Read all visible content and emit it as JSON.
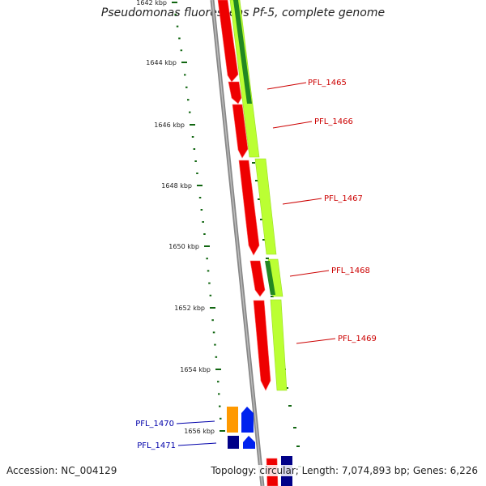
{
  "title": "Pseudomonas fluorescens Pf-5, complete genome",
  "footer": {
    "accession": "Accession: NC_004129",
    "summary": "Topology: circular; Length: 7,074,893 bp; Genes: 6,226"
  },
  "ticks": [
    {
      "kbp": 1642,
      "label": "1642 kbp"
    },
    {
      "kbp": 1644,
      "label": "1644 kbp"
    },
    {
      "kbp": 1646,
      "label": "1646 kbp"
    },
    {
      "kbp": 1648,
      "label": "1648 kbp"
    },
    {
      "kbp": 1650,
      "label": "1650 kbp"
    },
    {
      "kbp": 1652,
      "label": "1652 kbp"
    },
    {
      "kbp": 1654,
      "label": "1654 kbp"
    },
    {
      "kbp": 1656,
      "label": "1656 kbp"
    }
  ],
  "gene_labels": [
    {
      "name": "PFL_1465",
      "color": "#cc0000"
    },
    {
      "name": "PFL_1466",
      "color": "#cc0000"
    },
    {
      "name": "PFL_1467",
      "color": "#cc0000"
    },
    {
      "name": "PFL_1468",
      "color": "#cc0000"
    },
    {
      "name": "PFL_1469",
      "color": "#cc0000"
    },
    {
      "name": "PFL_1470",
      "color": "#0000aa"
    },
    {
      "name": "PFL_1471",
      "color": "#0000aa"
    }
  ],
  "colors": {
    "cds_red": "#ee0000",
    "gene_lime": "#bbff33",
    "gene_darkgreen": "#228822",
    "tick_green": "#116611",
    "backbone": "#888888",
    "trna_orange": "#ff9900",
    "rna_blue": "#0022ee",
    "rna_navy": "#000088"
  }
}
